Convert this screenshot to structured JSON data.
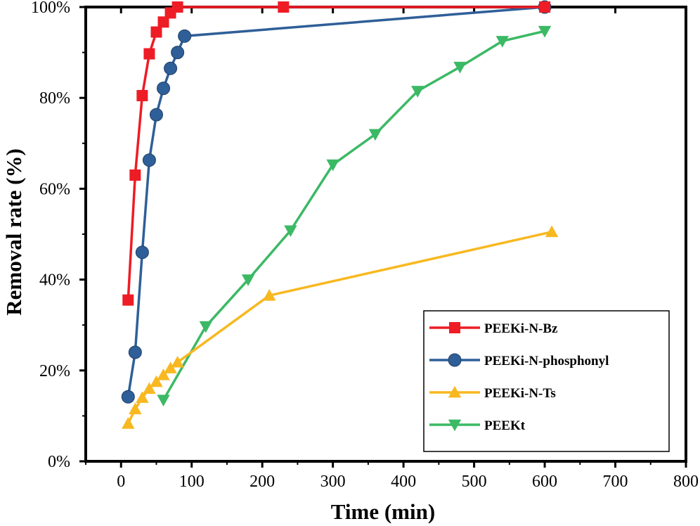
{
  "chart_data": {
    "type": "line",
    "title": "",
    "xlabel": "Time (min)",
    "ylabel": "Removal rate (%)",
    "xlim": [
      -50,
      800
    ],
    "ylim": [
      0,
      100
    ],
    "xticks": [
      "0",
      "100",
      "200",
      "300",
      "400",
      "500",
      "600",
      "700",
      "800"
    ],
    "yticks": [
      "0%",
      "20%",
      "40%",
      "60%",
      "80%",
      "100%"
    ],
    "grid": false,
    "legend_position": "bottom-right",
    "series": [
      {
        "name": "PEEKi-N-Bz",
        "color": "#ee1c25",
        "marker": "square",
        "x": [
          10,
          20,
          30,
          40,
          50,
          60,
          70,
          80,
          230,
          600
        ],
        "y": [
          35.5,
          63,
          80.5,
          89.7,
          94.5,
          96.7,
          98.7,
          100,
          100,
          100
        ]
      },
      {
        "name": "PEEKi-N-phosphonyl",
        "color": "#2f5f98",
        "marker": "circle",
        "x": [
          10,
          20,
          30,
          40,
          50,
          60,
          70,
          80,
          90,
          600
        ],
        "y": [
          14.2,
          24,
          46,
          66.3,
          76.3,
          82.1,
          86.5,
          90,
          93.6,
          100
        ]
      },
      {
        "name": "PEEKi-N-Ts",
        "color": "#f8b820",
        "marker": "triangle-up",
        "x": [
          10,
          20,
          30,
          40,
          50,
          60,
          70,
          80,
          210,
          610
        ],
        "y": [
          8.3,
          11.5,
          14,
          16,
          17.5,
          19,
          20.5,
          21.8,
          36.5,
          50.5
        ]
      },
      {
        "name": "PEEKt",
        "color": "#3cb965",
        "marker": "triangle-down",
        "x": [
          60,
          120,
          180,
          240,
          300,
          360,
          420,
          480,
          540,
          600
        ],
        "y": [
          13.5,
          29.7,
          40,
          50.8,
          65.3,
          72,
          81.5,
          86.8,
          92.5,
          94.7
        ]
      }
    ]
  }
}
